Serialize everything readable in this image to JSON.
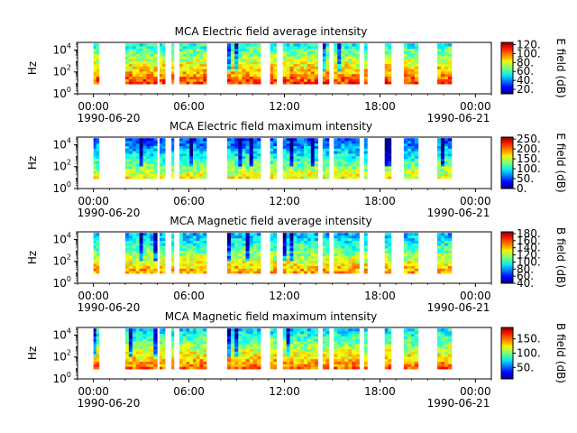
{
  "chart_data": [
    {
      "type": "heatmap",
      "title": "MCA  Electric field average intensity",
      "ylabel": "Hz",
      "yscale": "log",
      "ylim": [
        1,
        50000
      ],
      "ytick_labels": [
        {
          "base": "10",
          "exp": "0"
        },
        {
          "base": "10",
          "exp": "2"
        },
        {
          "base": "10",
          "exp": "4"
        }
      ],
      "xlim": [
        "1990-06-20 00:00",
        "1990-06-21 00:00"
      ],
      "xtick_labels": [
        "00:00",
        "06:00",
        "12:00",
        "18:00",
        "00:00"
      ],
      "xdate_labels": [
        "1990-06-20",
        "1990-06-21"
      ],
      "colorbar": {
        "label": "E field (dB)",
        "range": [
          10,
          125
        ],
        "ticks": [
          "20.",
          "40.",
          "60.",
          "80.",
          "100.",
          "120."
        ]
      },
      "coverage_hours": [
        [
          0.0,
          0.35
        ],
        [
          2.0,
          4.0
        ],
        [
          4.15,
          4.5
        ],
        [
          4.9,
          5.05
        ],
        [
          5.4,
          7.1
        ],
        [
          8.4,
          10.5
        ],
        [
          11.1,
          11.5
        ],
        [
          11.9,
          14.1
        ],
        [
          14.4,
          14.8
        ],
        [
          15.1,
          16.7
        ],
        [
          17.0,
          17.2
        ],
        [
          18.3,
          18.7
        ],
        [
          19.5,
          20.4
        ],
        [
          21.6,
          22.5
        ]
      ],
      "intensity_bias": 0.1
    },
    {
      "type": "heatmap",
      "title": "MCA  Electric field maximum intensity",
      "ylabel": "Hz",
      "yscale": "log",
      "ylim": [
        1,
        50000
      ],
      "ytick_labels": [
        {
          "base": "10",
          "exp": "0"
        },
        {
          "base": "10",
          "exp": "2"
        },
        {
          "base": "10",
          "exp": "4"
        }
      ],
      "xlim": [
        "1990-06-20 00:00",
        "1990-06-21 00:00"
      ],
      "xtick_labels": [
        "00:00",
        "06:00",
        "12:00",
        "18:00",
        "00:00"
      ],
      "xdate_labels": [
        "1990-06-20",
        "1990-06-21"
      ],
      "colorbar": {
        "label": "E field (dB)",
        "range": [
          0,
          260
        ],
        "ticks": [
          "0.",
          "50.",
          "100.",
          "150.",
          "200.",
          "250."
        ]
      },
      "coverage_hours": [
        [
          0.0,
          0.35
        ],
        [
          2.0,
          4.0
        ],
        [
          4.15,
          4.5
        ],
        [
          4.9,
          5.05
        ],
        [
          5.4,
          7.1
        ],
        [
          8.4,
          10.5
        ],
        [
          11.1,
          11.5
        ],
        [
          11.9,
          14.1
        ],
        [
          14.4,
          14.8
        ],
        [
          15.1,
          16.7
        ],
        [
          17.0,
          17.2
        ],
        [
          18.3,
          18.7
        ],
        [
          19.5,
          20.4
        ],
        [
          21.6,
          22.5
        ]
      ],
      "intensity_bias": -0.1
    },
    {
      "type": "heatmap",
      "title": "MCA  Magnetic field average intensity",
      "ylabel": "Hz",
      "yscale": "log",
      "ylim": [
        1,
        50000
      ],
      "ytick_labels": [
        {
          "base": "10",
          "exp": "0"
        },
        {
          "base": "10",
          "exp": "2"
        },
        {
          "base": "10",
          "exp": "4"
        }
      ],
      "xlim": [
        "1990-06-20 00:00",
        "1990-06-21 00:00"
      ],
      "xtick_labels": [
        "00:00",
        "06:00",
        "12:00",
        "18:00",
        "00:00"
      ],
      "xdate_labels": [
        "1990-06-20",
        "1990-06-21"
      ],
      "colorbar": {
        "label": "B field (dB)",
        "range": [
          40,
          185
        ],
        "ticks": [
          "40.",
          "60.",
          "80.",
          "100.",
          "120.",
          "140.",
          "160.",
          "180."
        ]
      },
      "coverage_hours": [
        [
          0.0,
          0.35
        ],
        [
          2.0,
          4.0
        ],
        [
          4.15,
          4.5
        ],
        [
          4.9,
          5.05
        ],
        [
          5.4,
          7.1
        ],
        [
          8.4,
          10.5
        ],
        [
          11.1,
          11.5
        ],
        [
          11.9,
          14.1
        ],
        [
          14.4,
          14.8
        ],
        [
          15.1,
          16.7
        ],
        [
          17.0,
          17.2
        ],
        [
          18.3,
          18.7
        ],
        [
          19.5,
          20.4
        ],
        [
          21.6,
          22.5
        ]
      ],
      "intensity_bias": 0.0
    },
    {
      "type": "heatmap",
      "title": "MCA  Magnetic field maximum intensity",
      "ylabel": "Hz",
      "yscale": "log",
      "ylim": [
        1,
        50000
      ],
      "ytick_labels": [
        {
          "base": "10",
          "exp": "0"
        },
        {
          "base": "10",
          "exp": "2"
        },
        {
          "base": "10",
          "exp": "4"
        }
      ],
      "xlim": [
        "1990-06-20 00:00",
        "1990-06-21 00:00"
      ],
      "xtick_labels": [
        "00:00",
        "06:00",
        "12:00",
        "18:00",
        "00:00"
      ],
      "xdate_labels": [
        "1990-06-20",
        "1990-06-21"
      ],
      "colorbar": {
        "label": "B field (dB)",
        "range": [
          10,
          190
        ],
        "ticks": [
          "50.",
          "100.",
          "150."
        ]
      },
      "coverage_hours": [
        [
          0.0,
          0.35
        ],
        [
          2.0,
          4.0
        ],
        [
          4.15,
          4.5
        ],
        [
          4.9,
          5.05
        ],
        [
          5.4,
          7.1
        ],
        [
          8.4,
          10.5
        ],
        [
          11.1,
          11.5
        ],
        [
          11.9,
          14.1
        ],
        [
          14.4,
          14.8
        ],
        [
          15.1,
          16.7
        ],
        [
          17.0,
          17.2
        ],
        [
          18.3,
          18.7
        ],
        [
          19.5,
          20.4
        ],
        [
          21.6,
          22.5
        ]
      ],
      "intensity_bias": 0.05
    }
  ]
}
